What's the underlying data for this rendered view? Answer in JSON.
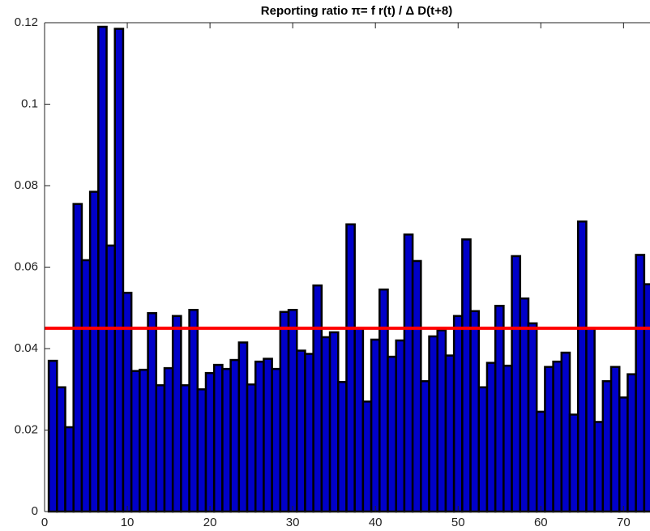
{
  "chart_data": {
    "type": "bar",
    "title": "Reporting ratio π= f r(t) / Δ D(t+8)",
    "x": [
      1,
      2,
      3,
      4,
      5,
      6,
      7,
      8,
      9,
      10,
      11,
      12,
      13,
      14,
      15,
      16,
      17,
      18,
      19,
      20,
      21,
      22,
      23,
      24,
      25,
      26,
      27,
      28,
      29,
      30,
      31,
      32,
      33,
      34,
      35,
      36,
      37,
      38,
      39,
      40,
      41,
      42,
      43,
      44,
      45,
      46,
      47,
      48,
      49,
      50,
      51,
      52,
      53,
      54,
      55,
      56,
      57,
      58,
      59,
      60,
      61,
      62,
      63,
      64,
      65,
      66,
      67,
      68,
      69,
      70,
      71,
      72,
      73
    ],
    "values": [
      0.037,
      0.0305,
      0.0207,
      0.0755,
      0.0617,
      0.0785,
      0.119,
      0.0653,
      0.1185,
      0.0537,
      0.0345,
      0.0348,
      0.0487,
      0.031,
      0.0352,
      0.048,
      0.031,
      0.0495,
      0.03,
      0.034,
      0.036,
      0.035,
      0.0372,
      0.0415,
      0.0312,
      0.0368,
      0.0375,
      0.035,
      0.049,
      0.0495,
      0.0395,
      0.0387,
      0.0555,
      0.0428,
      0.044,
      0.0318,
      0.0705,
      0.045,
      0.027,
      0.0422,
      0.0545,
      0.038,
      0.042,
      0.068,
      0.0615,
      0.032,
      0.043,
      0.0445,
      0.0383,
      0.048,
      0.0668,
      0.0492,
      0.0305,
      0.0365,
      0.0505,
      0.0358,
      0.0627,
      0.0523,
      0.0462,
      0.0245,
      0.0355,
      0.0368,
      0.039,
      0.0238,
      0.0712,
      0.045,
      0.022,
      0.032,
      0.0355,
      0.028,
      0.0337,
      0.063,
      0.0558
    ],
    "color": "#0000c8",
    "edge_color": "#000000",
    "reference_line": {
      "value": 0.045,
      "color": "#ff0000"
    },
    "xlim": [
      0,
      73.2
    ],
    "xticks": [
      0,
      10,
      20,
      30,
      40,
      50,
      60,
      70
    ],
    "ylim": [
      0,
      0.12
    ],
    "yticks": [
      0,
      0.02,
      0.04,
      0.06,
      0.08,
      0.1,
      0.12
    ]
  }
}
